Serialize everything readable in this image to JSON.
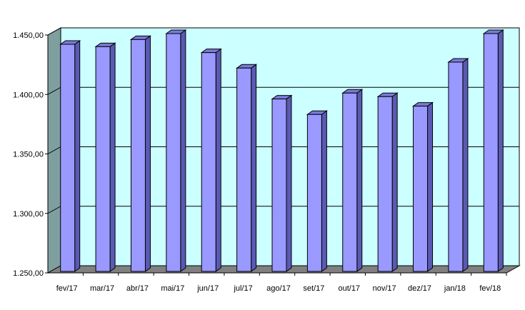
{
  "chart_data": {
    "type": "bar",
    "categories": [
      "fev/17",
      "mar/17",
      "abr/17",
      "mai/17",
      "jun/17",
      "jul/17",
      "ago/17",
      "set/17",
      "out/17",
      "nov/17",
      "dez/17",
      "jan/18",
      "fev/18"
    ],
    "values": [
      1441,
      1439,
      1445,
      1450,
      1434,
      1421,
      1395,
      1382,
      1400,
      1397,
      1389,
      1426,
      1450
    ],
    "yticks": [
      "1.250,00",
      "1.300,00",
      "1.350,00",
      "1.400,00",
      "1.450,00"
    ],
    "ylim": [
      1250,
      1450
    ],
    "yticks_values": [
      1250,
      1300,
      1350,
      1400,
      1450
    ],
    "grid": true,
    "legend": "none",
    "colors": {
      "bar_front": "#9999ff",
      "bar_side": "#5a5ab4",
      "bar_top": "#7a7ad8",
      "wall_back": "#ccffff",
      "wall_side": "#7f9f9f",
      "floor": "#808080",
      "grid": "#000000"
    }
  }
}
